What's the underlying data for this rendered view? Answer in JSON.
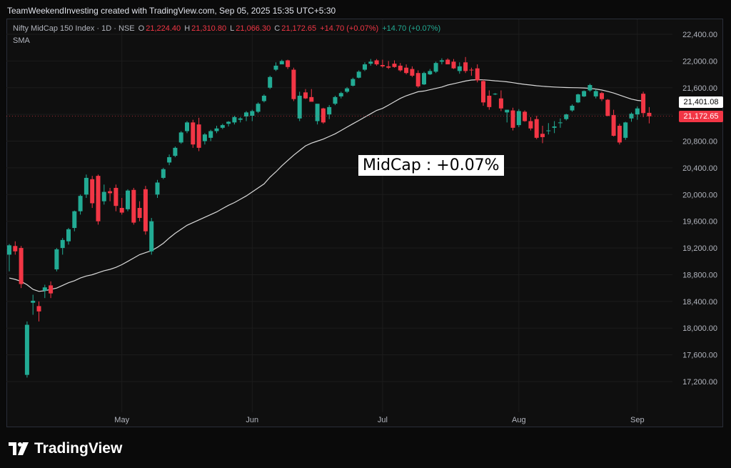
{
  "header": {
    "credit": "TeamWeekendInvesting created with TradingView.com, Sep 05, 2025 15:35 UTC+5:30"
  },
  "symbol": {
    "name": "Nifty MidCap 150 Index · 1D · NSE",
    "open_label": "O",
    "open": "21,224.40",
    "high_label": "H",
    "high": "21,310.80",
    "low_label": "L",
    "low": "21,066.30",
    "close_label": "C",
    "close": "21,172.65",
    "change": "+14.70 (+0.07%)",
    "change2": "+14.70 (+0.07%)"
  },
  "indicator": {
    "label": "SMA"
  },
  "annotation": {
    "text": "MidCap : +0.07%"
  },
  "price_tags": {
    "sma": "21,401.08",
    "last": "21,172.65"
  },
  "footer": {
    "brand": "TradingView"
  },
  "colors": {
    "up": "#22ab94",
    "down": "#f23645",
    "sma": "#d9d9d9",
    "grid": "#1c1c1c",
    "axis_text": "#b2b5be"
  },
  "chart_data": {
    "type": "candlestick",
    "title": "Nifty MidCap 150 Index · 1D · NSE",
    "ylim": [
      16800,
      22800
    ],
    "y_ticks": [
      17200,
      17600,
      18000,
      18400,
      18800,
      19200,
      19600,
      20000,
      20400,
      20800,
      21200,
      21600,
      22000,
      22400
    ],
    "y_tick_labels": [
      "17,200.00",
      "17,600.00",
      "18,000.00",
      "18,400.00",
      "18,800.00",
      "19,200.00",
      "19,600.00",
      "20,000.00",
      "20,400.00",
      "20,800.00",
      "21,200.00",
      "21,600.00",
      "22,000.00",
      "22,400.00"
    ],
    "x_ticks": [
      {
        "label": "May",
        "index": 19
      },
      {
        "label": "Jun",
        "index": 41
      },
      {
        "label": "Jul",
        "index": 63
      },
      {
        "label": "Aug",
        "index": 86
      },
      {
        "label": "Sep",
        "index": 106
      }
    ],
    "candles": [
      [
        19100,
        19260,
        18850,
        19240
      ],
      [
        19230,
        19300,
        19100,
        19150
      ],
      [
        19200,
        19230,
        18600,
        18660
      ],
      [
        17300,
        18100,
        17260,
        18050
      ],
      [
        18380,
        18500,
        18200,
        18410
      ],
      [
        18330,
        18400,
        18100,
        18250
      ],
      [
        18560,
        18650,
        18450,
        18610
      ],
      [
        18640,
        18700,
        18450,
        18520
      ],
      [
        18880,
        19200,
        18850,
        19180
      ],
      [
        19200,
        19350,
        19100,
        19320
      ],
      [
        19300,
        19500,
        19250,
        19480
      ],
      [
        19500,
        19760,
        19450,
        19750
      ],
      [
        19750,
        20000,
        19700,
        19980
      ],
      [
        20000,
        20300,
        19950,
        20250
      ],
      [
        20230,
        20280,
        19800,
        19870
      ],
      [
        20280,
        20300,
        19550,
        19600
      ],
      [
        19900,
        20150,
        19850,
        20040
      ],
      [
        20050,
        20100,
        19900,
        20020
      ],
      [
        20100,
        20150,
        19750,
        19830
      ],
      [
        19800,
        19950,
        19700,
        19730
      ],
      [
        19780,
        20080,
        19750,
        20060
      ],
      [
        20070,
        20100,
        19550,
        19580
      ],
      [
        19800,
        19900,
        19600,
        19650
      ],
      [
        20080,
        20130,
        19400,
        19450
      ],
      [
        19150,
        19650,
        19100,
        19600
      ],
      [
        20000,
        20220,
        19950,
        20180
      ],
      [
        20250,
        20400,
        20230,
        20380
      ],
      [
        20480,
        20600,
        20440,
        20560
      ],
      [
        20580,
        20720,
        20560,
        20700
      ],
      [
        20780,
        20950,
        20760,
        20930
      ],
      [
        20950,
        21100,
        20920,
        21080
      ],
      [
        21080,
        21120,
        20700,
        20750
      ],
      [
        21050,
        21150,
        20650,
        20700
      ],
      [
        20800,
        20920,
        20750,
        20900
      ],
      [
        20850,
        20970,
        20800,
        20950
      ],
      [
        20950,
        21030,
        20920,
        20990
      ],
      [
        21000,
        21060,
        20980,
        21040
      ],
      [
        21060,
        21100,
        21020,
        21090
      ],
      [
        21080,
        21180,
        21050,
        21160
      ],
      [
        21120,
        21160,
        21080,
        21140
      ],
      [
        21170,
        21250,
        21100,
        21230
      ],
      [
        21180,
        21270,
        21100,
        21250
      ],
      [
        21240,
        21380,
        21220,
        21360
      ],
      [
        21400,
        21500,
        21380,
        21480
      ],
      [
        21600,
        21780,
        21580,
        21760
      ],
      [
        21870,
        21980,
        21850,
        21930
      ],
      [
        21950,
        22020,
        21960,
        22000
      ],
      [
        22010,
        22020,
        21880,
        21910
      ],
      [
        21870,
        21900,
        21400,
        21430
      ],
      [
        21140,
        21540,
        21100,
        21480
      ],
      [
        21530,
        21580,
        21430,
        21440
      ],
      [
        21460,
        21580,
        21400,
        21390
      ],
      [
        21100,
        21340,
        21050,
        21360
      ],
      [
        21290,
        21300,
        21060,
        21080
      ],
      [
        21200,
        21340,
        21130,
        21310
      ],
      [
        21360,
        21480,
        21340,
        21460
      ],
      [
        21470,
        21540,
        21440,
        21520
      ],
      [
        21540,
        21610,
        21520,
        21590
      ],
      [
        21630,
        21750,
        21620,
        21730
      ],
      [
        21750,
        21860,
        21740,
        21840
      ],
      [
        21870,
        21980,
        21850,
        21950
      ],
      [
        21960,
        22030,
        21930,
        21990
      ],
      [
        22010,
        22030,
        21930,
        21950
      ],
      [
        21940,
        22020,
        21900,
        21920
      ],
      [
        21920,
        22000,
        21880,
        21900
      ],
      [
        21960,
        22010,
        21900,
        21910
      ],
      [
        21930,
        21970,
        21840,
        21860
      ],
      [
        21900,
        21950,
        21800,
        21820
      ],
      [
        21880,
        21920,
        21760,
        21780
      ],
      [
        21820,
        21860,
        21600,
        21620
      ],
      [
        21650,
        21840,
        21640,
        21820
      ],
      [
        21800,
        21880,
        21790,
        21850
      ],
      [
        21840,
        21990,
        21820,
        21970
      ],
      [
        21990,
        22040,
        21950,
        22010
      ],
      [
        22020,
        22040,
        21980,
        21950
      ],
      [
        21990,
        22030,
        21880,
        21890
      ],
      [
        21850,
        21980,
        21810,
        21920
      ],
      [
        21980,
        22060,
        21820,
        21850
      ],
      [
        21870,
        21900,
        21780,
        21860
      ],
      [
        21890,
        21950,
        21680,
        21710
      ],
      [
        21700,
        21720,
        21330,
        21380
      ],
      [
        21480,
        21560,
        21270,
        21310
      ],
      [
        21500,
        21520,
        21490,
        21510
      ],
      [
        21440,
        21560,
        21250,
        21290
      ],
      [
        21230,
        21270,
        21080,
        21270
      ],
      [
        21260,
        21300,
        20960,
        21000
      ],
      [
        21040,
        21280,
        21010,
        21250
      ],
      [
        21240,
        21260,
        21090,
        21100
      ],
      [
        21100,
        21160,
        20960,
        20990
      ],
      [
        21130,
        21180,
        20830,
        20850
      ],
      [
        20910,
        21030,
        20770,
        20860
      ],
      [
        20960,
        21070,
        20900,
        20960
      ],
      [
        21000,
        21100,
        20920,
        21020
      ],
      [
        21080,
        21140,
        21000,
        21080
      ],
      [
        21130,
        21210,
        21110,
        21200
      ],
      [
        21260,
        21350,
        21240,
        21330
      ],
      [
        21380,
        21510,
        21370,
        21500
      ],
      [
        21470,
        21560,
        21460,
        21550
      ],
      [
        21560,
        21660,
        21540,
        21640
      ],
      [
        21470,
        21580,
        21440,
        21550
      ],
      [
        21520,
        21540,
        21400,
        21430
      ],
      [
        21420,
        21430,
        21170,
        21180
      ],
      [
        21190,
        21270,
        20870,
        20880
      ],
      [
        21030,
        21060,
        20750,
        20780
      ],
      [
        20850,
        21090,
        20820,
        21080
      ],
      [
        21140,
        21230,
        21090,
        21210
      ],
      [
        21200,
        21320,
        21120,
        21290
      ],
      [
        21510,
        21540,
        21160,
        21220
      ],
      [
        21224,
        21310,
        21066,
        21172
      ]
    ],
    "sma": [
      18750,
      18730,
      18700,
      18650,
      18580,
      18550,
      18560,
      18580,
      18600,
      18640,
      18680,
      18710,
      18750,
      18780,
      18800,
      18830,
      18860,
      18880,
      18910,
      18950,
      19000,
      19050,
      19100,
      19130,
      19160,
      19210,
      19270,
      19350,
      19420,
      19480,
      19540,
      19580,
      19620,
      19660,
      19700,
      19740,
      19790,
      19840,
      19880,
      19930,
      19980,
      20040,
      20100,
      20160,
      20260,
      20340,
      20430,
      20510,
      20590,
      20660,
      20730,
      20770,
      20800,
      20830,
      20870,
      20910,
      20960,
      21010,
      21060,
      21110,
      21160,
      21210,
      21260,
      21290,
      21340,
      21390,
      21440,
      21480,
      21510,
      21540,
      21550,
      21570,
      21590,
      21610,
      21640,
      21660,
      21680,
      21700,
      21715,
      21720,
      21718,
      21712,
      21703,
      21697,
      21688,
      21676,
      21662,
      21650,
      21640,
      21630,
      21622,
      21616,
      21610,
      21606,
      21603,
      21601,
      21600,
      21596,
      21590,
      21580,
      21565,
      21545,
      21520,
      21490,
      21460,
      21430,
      21410,
      21401
    ]
  }
}
